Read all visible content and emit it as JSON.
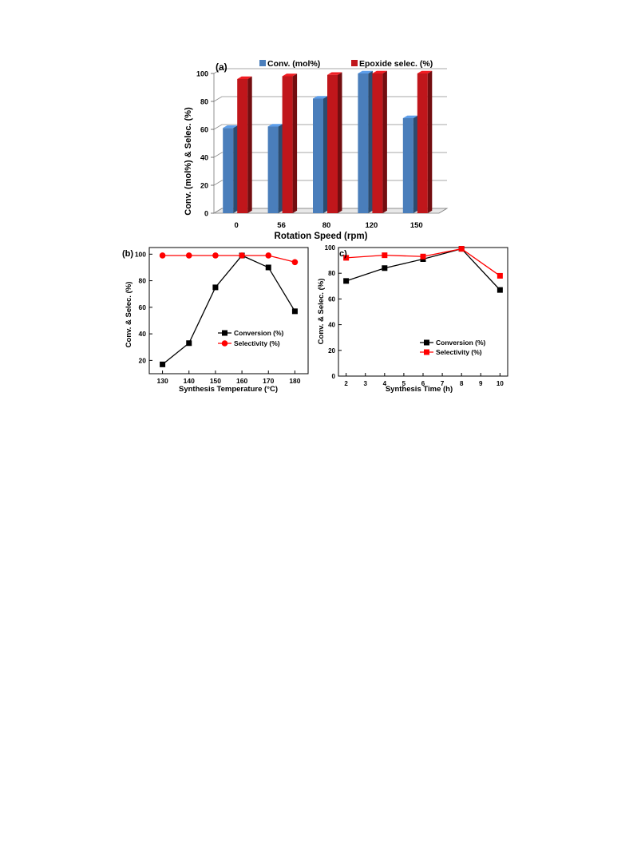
{
  "chart_data": [
    {
      "panel": "(a)",
      "type": "bar",
      "categories": [
        "0",
        "56",
        "80",
        "120",
        "150"
      ],
      "series": [
        {
          "name": "Conv. (mol%)",
          "color": "#4a7ebb",
          "values": [
            61,
            62,
            82,
            100,
            68
          ]
        },
        {
          "name": "Epoxide selec. (%)",
          "color": "#c0161b",
          "values": [
            96,
            98,
            99,
            100,
            100
          ]
        }
      ],
      "xlabel": "Rotation Speed (rpm)",
      "ylabel": "Conv. (mol%) & Selec. (%)",
      "ylim": [
        0,
        100
      ],
      "yticks": [
        "0",
        "20",
        "40",
        "60",
        "80",
        "100"
      ],
      "grid": true,
      "legend_position": "top"
    },
    {
      "panel": "(b)",
      "type": "line",
      "x": [
        130,
        140,
        150,
        160,
        170,
        180
      ],
      "xticks": [
        "130",
        "140",
        "150",
        "160",
        "170",
        "180"
      ],
      "series": [
        {
          "name": "Conversion (%)",
          "color": "#000000",
          "marker": "square",
          "values": [
            17,
            33,
            75,
            99,
            90,
            57
          ]
        },
        {
          "name": "Selectivity (%)",
          "color": "#ff0000",
          "marker": "circle",
          "values": [
            99,
            99,
            99,
            99,
            99,
            94
          ]
        }
      ],
      "xlabel": "Synthesis Temperature (°C)",
      "ylabel": "Conv. & Selec. (%)",
      "xlim": [
        125,
        185
      ],
      "ylim": [
        10,
        105
      ],
      "yticks": [
        "20",
        "40",
        "60",
        "80",
        "100"
      ],
      "grid": false,
      "legend_position": "center-right"
    },
    {
      "panel": "c)",
      "type": "line",
      "x": [
        2,
        4,
        6,
        8,
        10
      ],
      "xticks": [
        "2",
        "3",
        "4",
        "5",
        "6",
        "7",
        "8",
        "9",
        "10"
      ],
      "series": [
        {
          "name": "Conversion (%)",
          "color": "#000000",
          "marker": "square",
          "values": [
            74,
            84,
            91,
            99,
            67
          ]
        },
        {
          "name": "Selectivity (%)",
          "color": "#ff0000",
          "marker": "square",
          "values": [
            92,
            94,
            93,
            99,
            78
          ]
        }
      ],
      "xlabel": "Synthesis Time (h)",
      "ylabel": "Conv. & Selec. (%)",
      "xlim": [
        1.6,
        10.4
      ],
      "ylim": [
        0,
        100
      ],
      "yticks": [
        "0",
        "20",
        "40",
        "60",
        "80",
        "100"
      ],
      "grid": false,
      "legend_position": "bottom-right"
    }
  ]
}
